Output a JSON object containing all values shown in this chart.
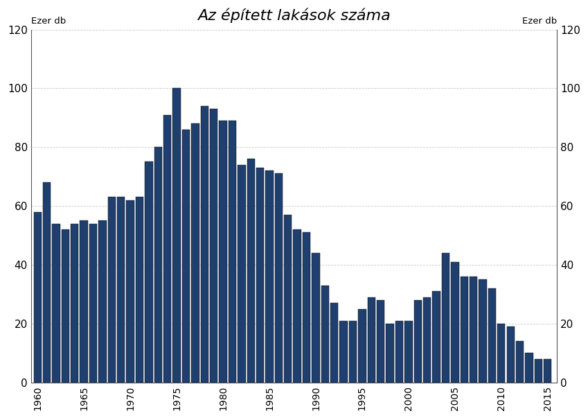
{
  "title": "Az épített lakások száma",
  "ylabel_left": "Ezer db",
  "ylabel_right": "Ezer db",
  "ylim": [
    0,
    120
  ],
  "yticks": [
    0,
    20,
    40,
    60,
    80,
    100,
    120
  ],
  "bar_color": "#1F3F6E",
  "bar_edgecolor": "#000000",
  "bar_linewidth": 0.3,
  "background_color": "#ffffff",
  "grid_color": "#bbbbbb",
  "years": [
    1960,
    1961,
    1962,
    1963,
    1964,
    1965,
    1966,
    1967,
    1968,
    1969,
    1970,
    1971,
    1972,
    1973,
    1974,
    1975,
    1976,
    1977,
    1978,
    1979,
    1980,
    1981,
    1982,
    1983,
    1984,
    1985,
    1986,
    1987,
    1988,
    1989,
    1990,
    1991,
    1992,
    1993,
    1994,
    1995,
    1996,
    1997,
    1998,
    1999,
    2000,
    2001,
    2002,
    2003,
    2004,
    2005,
    2006,
    2007,
    2008,
    2009,
    2010,
    2011,
    2012,
    2013,
    2014,
    2015
  ],
  "values": [
    58,
    68,
    54,
    52,
    54,
    55,
    54,
    55,
    63,
    63,
    62,
    63,
    75,
    80,
    91,
    100,
    86,
    88,
    94,
    93,
    89,
    89,
    74,
    76,
    73,
    72,
    71,
    57,
    52,
    51,
    44,
    33,
    27,
    21,
    21,
    25,
    29,
    28,
    20,
    21,
    21,
    28,
    29,
    31,
    44,
    41,
    36,
    36,
    35,
    32,
    20,
    19,
    14,
    10,
    8,
    8
  ]
}
